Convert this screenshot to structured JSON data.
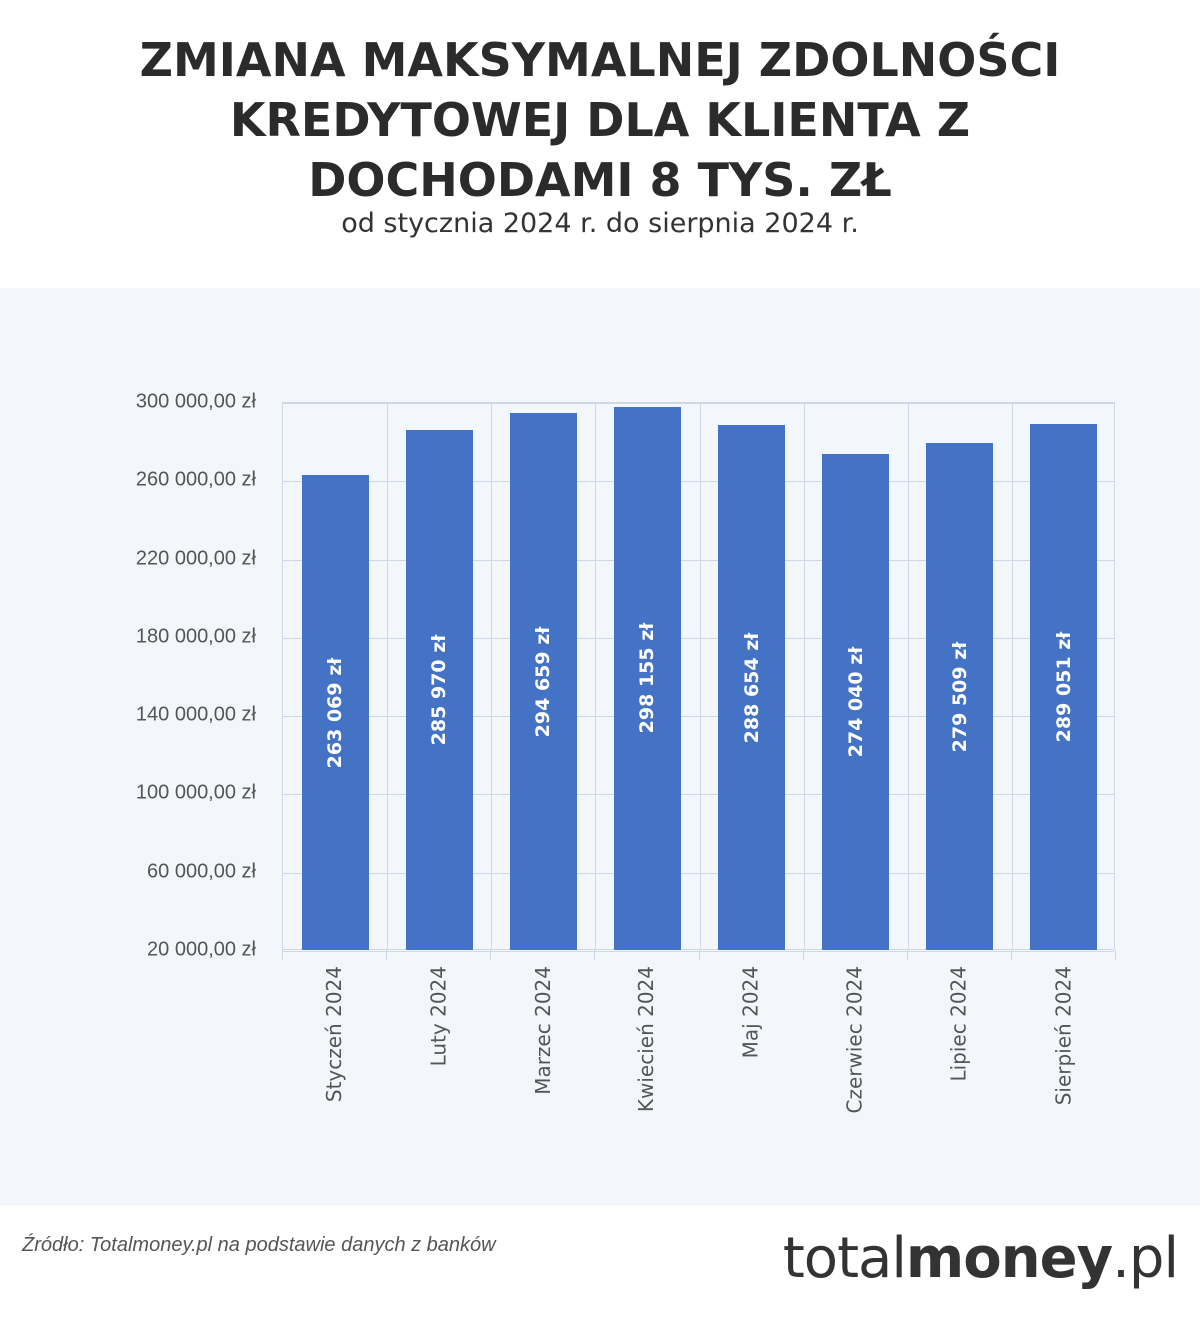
{
  "header": {
    "title_lines": [
      "ZMIANA MAKSYMALNEJ ZDOLNOŚCI",
      "KREDYTOWEJ DLA KLIENTA Z",
      "DOCHODAMI 8 TYS. ZŁ"
    ],
    "subtitle": "od stycznia 2024 r. do sierpnia 2024 r."
  },
  "footer": {
    "source": "Źródło: Totalmoney.pl na podstawie danych z banków",
    "logo_light": "total",
    "logo_bold": "money",
    "logo_suffix": ".pl"
  },
  "colors": {
    "bar": "#4472c4",
    "panel_bg": "#f3f6fb",
    "grid": "#cfd8e6",
    "title": "#2b2b2b"
  },
  "chart_data": {
    "type": "bar",
    "title": "ZMIANA MAKSYMALNEJ ZDOLNOŚCI KREDYTOWEJ DLA KLIENTA Z DOCHODAMI 8 TYS. ZŁ",
    "subtitle": "od stycznia 2024 r. do sierpnia 2024 r.",
    "xlabel": "",
    "ylabel": "",
    "categories": [
      "Styczeń 2024",
      "Luty 2024",
      "Marzec 2024",
      "Kwiecień 2024",
      "Maj 2024",
      "Czerwiec 2024",
      "Lipiec 2024",
      "Sierpień 2024"
    ],
    "values": [
      263069,
      285970,
      294659,
      298155,
      288654,
      274040,
      279509,
      289051
    ],
    "value_labels": [
      "263 069 zł",
      "285 970 zł",
      "294 659 zł",
      "298 155 zł",
      "288 654 zł",
      "274 040 zł",
      "279 509 zł",
      "289 051 zł"
    ],
    "ylim": [
      20000,
      300000
    ],
    "yticks": [
      20000,
      60000,
      100000,
      140000,
      180000,
      220000,
      260000,
      300000
    ],
    "ytick_labels": [
      "20 000,00 zł",
      "60 000,00 zł",
      "100 000,00 zł",
      "140 000,00 zł",
      "180 000,00 zł",
      "220 000,00 zł",
      "260 000,00 zł",
      "300 000,00 zł"
    ],
    "grid": true,
    "legend": null,
    "label_orientation": "vertical"
  }
}
